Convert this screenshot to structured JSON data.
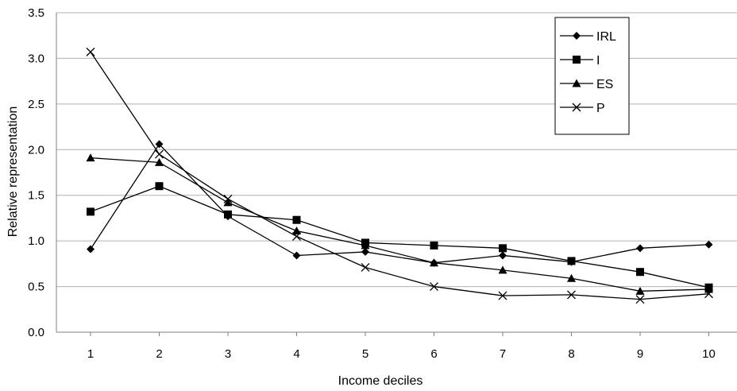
{
  "chart_data": {
    "type": "line",
    "title": "",
    "xlabel": "Income deciles",
    "ylabel": "Relative representation",
    "x": [
      1,
      2,
      3,
      4,
      5,
      6,
      7,
      8,
      9,
      10
    ],
    "x_tick_labels": [
      "1",
      "2",
      "3",
      "4",
      "5",
      "6",
      "7",
      "8",
      "9",
      "10"
    ],
    "y_tick_labels": [
      "0.0",
      "0.5",
      "1.0",
      "1.5",
      "2.0",
      "2.5",
      "3.0",
      "3.5"
    ],
    "ylim": [
      0,
      3.5
    ],
    "grid": "horizontal",
    "legend_position": "top-right",
    "series": [
      {
        "name": "IRL",
        "marker": "diamond",
        "values": [
          0.91,
          2.06,
          1.27,
          0.84,
          0.88,
          0.76,
          0.84,
          0.77,
          0.92,
          0.96
        ]
      },
      {
        "name": "I",
        "marker": "square",
        "values": [
          1.32,
          1.6,
          1.29,
          1.23,
          0.98,
          0.95,
          0.92,
          0.78,
          0.66,
          0.49
        ]
      },
      {
        "name": "ES",
        "marker": "triangle",
        "values": [
          1.91,
          1.86,
          1.42,
          1.11,
          0.95,
          0.76,
          0.68,
          0.59,
          0.45,
          0.47
        ]
      },
      {
        "name": "P",
        "marker": "x",
        "values": [
          3.07,
          1.95,
          1.46,
          1.05,
          0.71,
          0.5,
          0.4,
          0.41,
          0.36,
          0.42
        ]
      }
    ],
    "colors": {
      "line": "#000000",
      "grid": "#b0b0b0",
      "axis": "#808080"
    }
  }
}
